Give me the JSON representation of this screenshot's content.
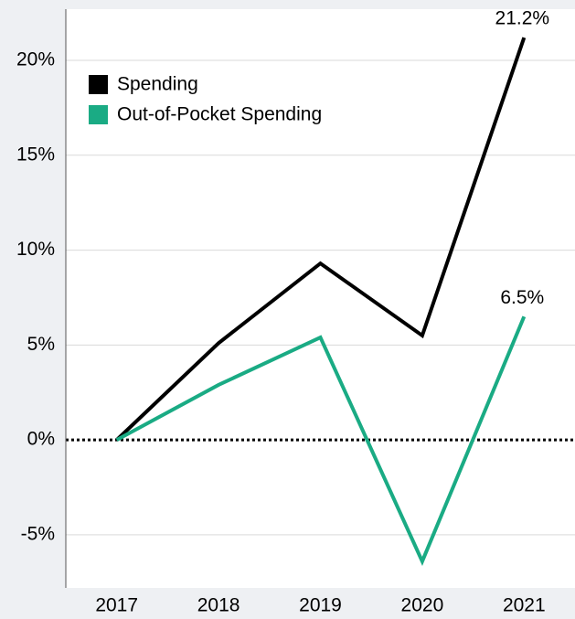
{
  "chart_data": {
    "type": "line",
    "categories": [
      "2017",
      "2018",
      "2019",
      "2020",
      "2021"
    ],
    "series": [
      {
        "name": "Spending",
        "color": "#000000",
        "values": [
          0,
          5.1,
          9.3,
          5.5,
          21.2
        ],
        "value_labels": [
          null,
          null,
          null,
          null,
          "21.2%"
        ]
      },
      {
        "name": "Out-of-Pocket Spending",
        "color": "#1aab84",
        "values": [
          0,
          2.9,
          5.4,
          -6.4,
          6.5
        ],
        "value_labels": [
          null,
          null,
          null,
          null,
          "6.5%"
        ]
      }
    ],
    "ylim": [
      -7.8,
      22.7
    ],
    "yticks": [
      {
        "value": -5,
        "label": "-5%"
      },
      {
        "value": 0,
        "label": "0%"
      },
      {
        "value": 5,
        "label": "5%"
      },
      {
        "value": 10,
        "label": "10%"
      },
      {
        "value": 15,
        "label": "15%"
      },
      {
        "value": 20,
        "label": "20%"
      }
    ],
    "grid": true,
    "legend": "upper-left"
  }
}
